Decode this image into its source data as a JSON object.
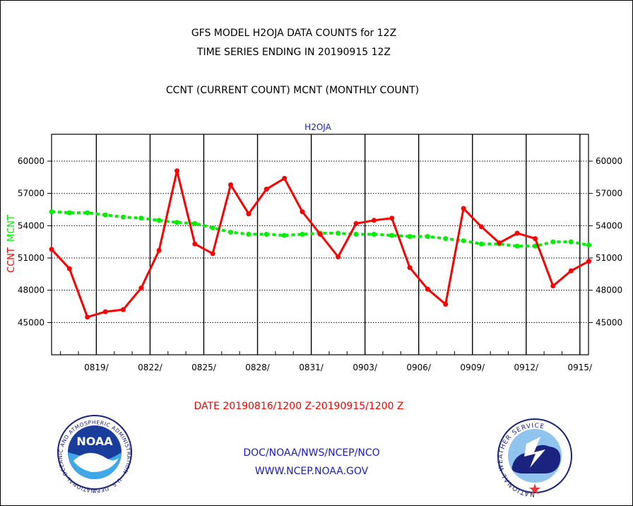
{
  "header": {
    "title_line1": "GFS MODEL H2OJA DATA COUNTS for 12Z",
    "title_line2": "TIME SERIES ENDING IN 20190915 12Z",
    "subtitle": "CCNT (CURRENT COUNT) MCNT (MONTHLY COUNT)",
    "plot_label": "H2OJA"
  },
  "footer": {
    "date_range": "DATE 20190816/1200 Z-20190915/1200 Z",
    "org_line": "DOC/NOAA/NWS/NCEP/NCO",
    "url_line": "WWW.NCEP.NOAA.GOV",
    "noaa_logo_text": "NOAA",
    "noaa_ring_text": "NATIONAL OCEANIC AND ATMOSPHERIC ADMINISTRATION · U.S. DEPARTMENT OF COMMERCE ·",
    "nws_ring_text": "NATIONAL WEATHER SERVICE"
  },
  "colors": {
    "ccnt": "#ff0000",
    "mcnt": "#00ee00",
    "title_text": "#000000",
    "label_blue": "#1a1acc",
    "grid": "#000000"
  },
  "chart_data": {
    "type": "line",
    "title": "GFS MODEL H2OJA DATA COUNTS for 12Z",
    "ylabel_parts": [
      "CCNT",
      "MCNT"
    ],
    "ylim": [
      42000,
      62500
    ],
    "yticks": [
      45000,
      48000,
      51000,
      54000,
      57000,
      60000
    ],
    "ytick_labels": [
      "45000",
      "48000",
      "51000",
      "54000",
      "57000",
      "60000"
    ],
    "x_day_range": [
      0,
      30
    ],
    "xticks": [
      "0819/",
      "0822/",
      "0825/",
      "0828/",
      "0831/",
      "0903/",
      "0906/",
      "0909/",
      "0912/",
      "0915/"
    ],
    "grid": true,
    "series": [
      {
        "name": "CCNT",
        "key": "ccnt",
        "dates": [
          "0816",
          "0817",
          "0818",
          "0819",
          "0820",
          "0821",
          "0822",
          "0823",
          "0824",
          "0825",
          "0826",
          "0827",
          "0828",
          "0829",
          "0830",
          "0831",
          "0901",
          "0902",
          "0903",
          "0904",
          "0905",
          "0906",
          "0907",
          "0908",
          "0909",
          "0910",
          "0911",
          "0912",
          "0913",
          "0914",
          "0915"
        ],
        "values": [
          51800,
          50000,
          45500,
          46000,
          46200,
          48200,
          51700,
          59100,
          52300,
          51400,
          57800,
          55100,
          57400,
          58400,
          55300,
          53200,
          51100,
          54200,
          54500,
          54700,
          50100,
          48100,
          46700,
          55600,
          53900,
          52400,
          53300,
          52800,
          48400,
          49800,
          50700
        ]
      },
      {
        "name": "MCNT",
        "key": "mcnt",
        "dates": [
          "0816",
          "0817",
          "0818",
          "0819",
          "0820",
          "0821",
          "0822",
          "0823",
          "0824",
          "0825",
          "0826",
          "0827",
          "0828",
          "0829",
          "0830",
          "0831",
          "0901",
          "0902",
          "0903",
          "0904",
          "0905",
          "0906",
          "0907",
          "0908",
          "0909",
          "0910",
          "0911",
          "0912",
          "0913",
          "0914",
          "0915"
        ],
        "values": [
          55300,
          55200,
          55200,
          55000,
          54800,
          54700,
          54500,
          54300,
          54200,
          53800,
          53400,
          53200,
          53200,
          53100,
          53200,
          53300,
          53300,
          53200,
          53200,
          53100,
          53000,
          53000,
          52800,
          52600,
          52300,
          52300,
          52100,
          52100,
          52500,
          52500,
          52200
        ]
      }
    ]
  }
}
